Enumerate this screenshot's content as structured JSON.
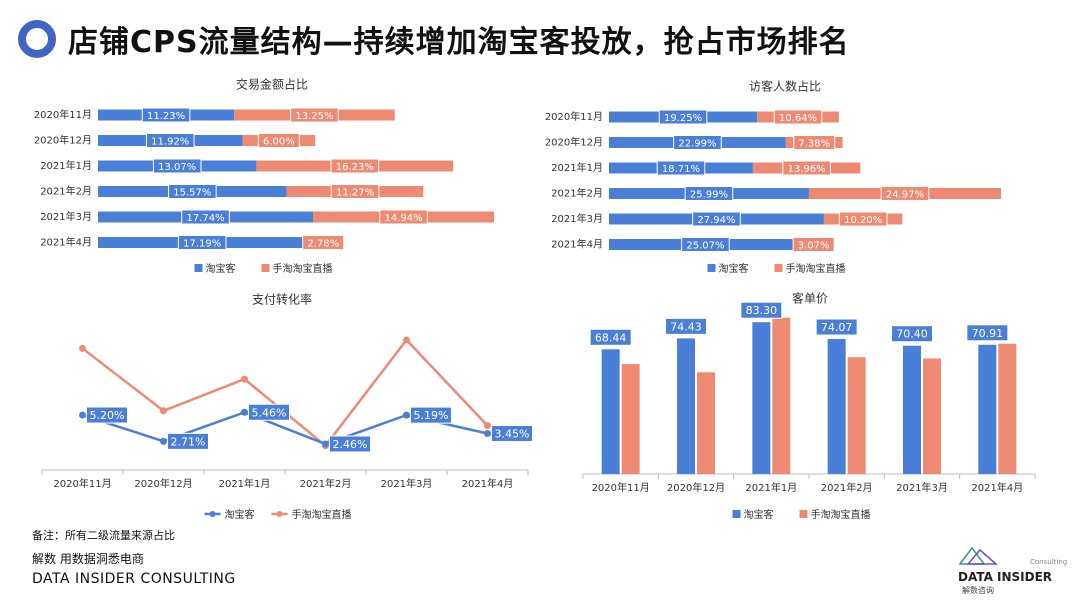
{
  "page": {
    "title": "店铺CPS流量结构—持续增加淘宝客投放，抢占市场排名",
    "note": "备注：所有二级流量来源占比",
    "source": "解数 用数据洞悉电商",
    "brand": "DATA INSIDER CONSULTING",
    "logo_main": "DATA INSIDER",
    "logo_sub": "解数咨询",
    "logo_top": "Consulting"
  },
  "colors": {
    "blue": "#4a7fd8",
    "orange": "#ee8a72",
    "title_ring": "#3f63c7"
  },
  "chart_data": [
    {
      "id": "trade",
      "type": "bar",
      "stacked": true,
      "orientation": "horizontal",
      "title": "交易金额占比",
      "categories": [
        "2020年11月",
        "2020年12月",
        "2021年1月",
        "2021年2月",
        "2021年3月",
        "2021年4月"
      ],
      "series": [
        {
          "name": "淘宝客",
          "values": [
            11.23,
            11.92,
            13.07,
            15.57,
            17.74,
            17.19
          ],
          "labels": [
            "11.23%",
            "11.92%",
            "13.07%",
            "15.57%",
            "17.74%",
            "17.19%"
          ]
        },
        {
          "name": "手淘淘宝直播",
          "values": [
            13.25,
            6.0,
            16.23,
            11.27,
            14.94,
            2.78
          ],
          "labels": [
            "13.25%",
            "6.00%",
            "16.23%",
            "11.27%",
            "14.94%",
            "2.78%"
          ]
        }
      ],
      "legend": "bottom"
    },
    {
      "id": "visitors",
      "type": "bar",
      "stacked": true,
      "orientation": "horizontal",
      "title": "访客人数占比",
      "categories": [
        "2020年11月",
        "2020年12月",
        "2021年1月",
        "2021年2月",
        "2021年3月",
        "2021年4月"
      ],
      "series": [
        {
          "name": "淘宝客",
          "values": [
            19.25,
            22.99,
            18.71,
            25.99,
            27.94,
            25.07
          ],
          "labels": [
            "19.25%",
            "22.99%",
            "18.71%",
            "25.99%",
            "27.94%",
            "25.07%"
          ]
        },
        {
          "name": "手淘淘宝直播",
          "values": [
            10.64,
            7.38,
            13.96,
            24.97,
            10.2,
            3.07
          ],
          "labels": [
            "10.64%",
            "7.38%",
            "13.96%",
            "24.97%",
            "10.20%",
            "3.07%"
          ]
        }
      ],
      "legend": "bottom"
    },
    {
      "id": "conversion",
      "type": "line",
      "title": "支付转化率",
      "categories": [
        "2020年11月",
        "2020年12月",
        "2021年1月",
        "2021年2月",
        "2021年3月",
        "2021年4月"
      ],
      "series": [
        {
          "name": "淘宝客",
          "values": [
            5.2,
            2.71,
            5.46,
            2.46,
            5.19,
            3.45
          ],
          "labels": [
            "5.20%",
            "2.71%",
            "5.46%",
            "2.46%",
            "5.19%",
            "3.45%"
          ]
        },
        {
          "name": "手淘淘宝直播",
          "values": [
            11.5,
            5.6,
            8.6,
            2.3,
            12.3,
            4.2
          ],
          "labels": []
        }
      ],
      "ylim": [
        0,
        14
      ],
      "legend": "bottom"
    },
    {
      "id": "aov",
      "type": "bar",
      "title": "客单价",
      "categories": [
        "2020年11月",
        "2020年12月",
        "2021年1月",
        "2021年2月",
        "2021年3月",
        "2021年4月"
      ],
      "series": [
        {
          "name": "淘宝客",
          "values": [
            68.44,
            74.43,
            83.3,
            74.07,
            70.4,
            70.91
          ],
          "labels": [
            "68.44",
            "74.43",
            "83.30",
            "74.07",
            "70.40",
            "70.91"
          ]
        },
        {
          "name": "手淘淘宝直播",
          "values": [
            60.3,
            55.8,
            85.8,
            64.1,
            63.4,
            71.5
          ],
          "labels": []
        }
      ],
      "ylim": [
        0,
        90
      ],
      "legend": "bottom"
    }
  ]
}
